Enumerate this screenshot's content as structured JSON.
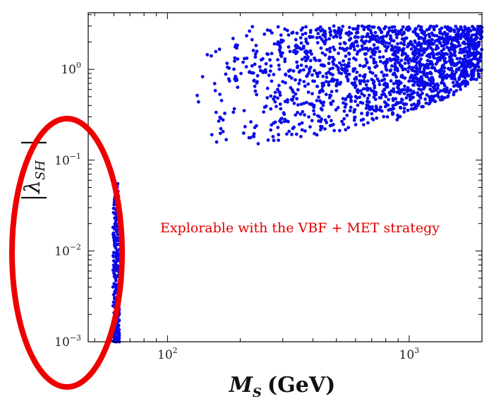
{
  "chart_data": {
    "type": "scatter",
    "title": "",
    "xlabel": {
      "main": "M",
      "sub": "S",
      "unit": "(GeV)"
    },
    "ylabel": {
      "main": "λ",
      "sub": "SH"
    },
    "x_scale": "log",
    "y_scale": "log",
    "xlim": [
      47,
      2000
    ],
    "ylim": [
      0.001,
      4.2
    ],
    "x_ticks": [
      {
        "value": 100,
        "base": "10",
        "exp": "2"
      },
      {
        "value": 1000,
        "base": "10",
        "exp": "3"
      }
    ],
    "y_ticks": [
      {
        "value": 1,
        "base": "10",
        "exp": "0"
      },
      {
        "value": 0.1,
        "base": "10",
        "exp": "−1"
      },
      {
        "value": 0.01,
        "base": "10",
        "exp": "−2"
      },
      {
        "value": 0.001,
        "base": "10",
        "exp": "−3"
      }
    ],
    "grid": false,
    "marker_color": "#0a0ae8",
    "regions": [
      {
        "name": "resonance",
        "x_range": [
          59.5,
          63.2
        ],
        "y_range": [
          0.001,
          0.058
        ],
        "y_distribution": "log-uniform, denser near 0.002–0.01"
      },
      {
        "name": "main",
        "x_range": [
          130,
          2000
        ],
        "y_upper": 3.0,
        "y_lower_profile": [
          [
            140,
            0.1
          ],
          [
            150,
            0.09
          ],
          [
            200,
            0.13
          ],
          [
            300,
            0.15
          ],
          [
            500,
            0.2
          ],
          [
            700,
            0.26
          ],
          [
            850,
            0.3
          ],
          [
            880,
            0.27
          ],
          [
            1000,
            0.34
          ],
          [
            1500,
            0.5
          ],
          [
            2000,
            0.85
          ]
        ]
      }
    ],
    "annotations": [
      {
        "text": "Explorable with the VBF + MET strategy",
        "color": "#e00000",
        "anchor": {
          "x": 230,
          "y": 0.016
        }
      }
    ],
    "highlight": {
      "shape": "ellipse",
      "color": "#ee0000",
      "encloses": "resonance"
    }
  }
}
